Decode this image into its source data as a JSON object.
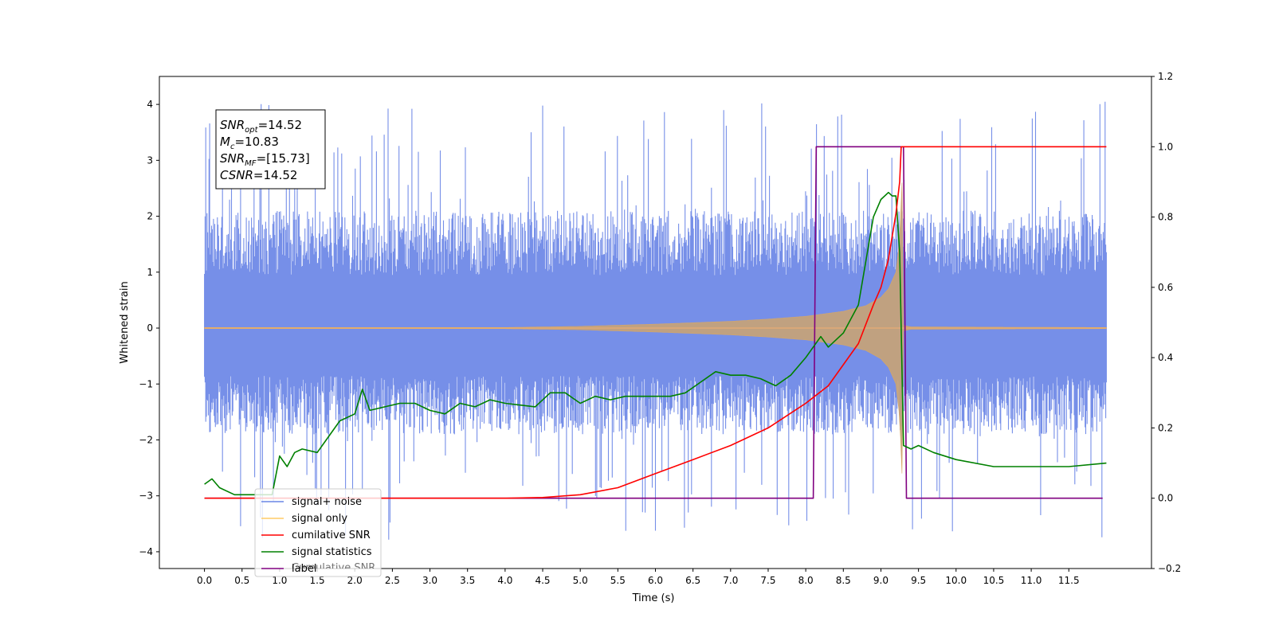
{
  "chart_data": {
    "type": "line",
    "xlabel": "Time (s)",
    "ylabel": "Whitened strain",
    "xlim": [
      -0.6,
      12.6
    ],
    "ylim": [
      -4.3,
      4.5
    ],
    "y2lim": [
      -0.2,
      1.2
    ],
    "x_ticks": [
      "0.0",
      "0.5",
      "1.0",
      "1.5",
      "2.0",
      "2.5",
      "3.0",
      "3.5",
      "4.0",
      "4.5",
      "5.0",
      "5.5",
      "6.0",
      "6.5",
      "7.0",
      "7.5",
      "8.0",
      "8.5",
      "9.0",
      "9.5",
      "10.0",
      "10.5",
      "11.0",
      "11.5"
    ],
    "x_tick_values": [
      0.0,
      0.5,
      1.0,
      1.5,
      2.0,
      2.5,
      3.0,
      3.5,
      4.0,
      4.5,
      5.0,
      5.5,
      6.0,
      6.5,
      7.0,
      7.5,
      8.0,
      8.5,
      9.0,
      9.5,
      10.0,
      10.5,
      11.0,
      11.5
    ],
    "y_ticks": [
      "4",
      "3",
      "2",
      "1",
      "0",
      "−1",
      "−2",
      "−3",
      "−4"
    ],
    "y_tick_values": [
      4,
      3,
      2,
      1,
      0,
      -1,
      -2,
      -3,
      -4
    ],
    "y2_ticks": [
      "1.2",
      "1.0",
      "0.8",
      "0.6",
      "0.4",
      "0.2",
      "0.0",
      "−0.2"
    ],
    "y2_tick_values": [
      1.2,
      1.0,
      0.8,
      0.6,
      0.4,
      0.2,
      0.0,
      -0.2
    ],
    "grid": false,
    "legend_placement": "lower-left",
    "annotation_box": {
      "lines": [
        {
          "sym": "SNR",
          "sub": "opt",
          "value": "=14.52"
        },
        {
          "sym": "M",
          "sub": "c",
          "value": "=10.83"
        },
        {
          "sym": "SNR",
          "sub": "MF",
          "value": "=[15.73]"
        },
        {
          "sym": "CSNR",
          "sub": "",
          "value": "=14.52"
        }
      ]
    },
    "noise_envelope": {
      "x": [
        0.0,
        12.0
      ],
      "typical_upper": 2.1,
      "typical_lower": -1.9,
      "max": 4.1,
      "min": -3.8,
      "axis": "left"
    },
    "signal_envelope": {
      "x": [
        0,
        4,
        5,
        6,
        7,
        7.5,
        8,
        8.5,
        8.8,
        9.0,
        9.1,
        9.2,
        9.25,
        9.28,
        9.3,
        9.4,
        12
      ],
      "amplitude": [
        0.01,
        0.01,
        0.03,
        0.07,
        0.12,
        0.16,
        0.21,
        0.3,
        0.4,
        0.55,
        0.7,
        1.0,
        1.6,
        2.6,
        0.05,
        0.02,
        0.01
      ],
      "axis": "left"
    },
    "series": [
      {
        "name": "cumilative SNR",
        "color": "#ff0000",
        "axis": "right",
        "x": [
          0,
          4.0,
          4.5,
          5.0,
          5.5,
          6.0,
          6.5,
          7.0,
          7.5,
          8.0,
          8.3,
          8.5,
          8.7,
          8.9,
          9.0,
          9.1,
          9.2,
          9.25,
          9.27,
          9.3,
          11.5,
          12.0
        ],
        "y": [
          0,
          0,
          0.002,
          0.01,
          0.03,
          0.07,
          0.11,
          0.15,
          0.2,
          0.27,
          0.32,
          0.38,
          0.44,
          0.55,
          0.6,
          0.68,
          0.81,
          0.9,
          1.0,
          1.0,
          1.0,
          1.0
        ]
      },
      {
        "name": "signal statistics",
        "color": "#008000",
        "axis": "right",
        "x": [
          0,
          0.1,
          0.2,
          0.4,
          0.6,
          0.8,
          0.9,
          1.0,
          1.1,
          1.2,
          1.3,
          1.5,
          1.6,
          1.8,
          2.0,
          2.1,
          2.2,
          2.4,
          2.6,
          2.8,
          3.0,
          3.2,
          3.4,
          3.6,
          3.8,
          4.0,
          4.4,
          4.6,
          4.8,
          5.0,
          5.2,
          5.4,
          5.6,
          5.8,
          6.0,
          6.2,
          6.4,
          6.6,
          6.8,
          7.0,
          7.2,
          7.4,
          7.6,
          7.8,
          8.0,
          8.2,
          8.3,
          8.5,
          8.7,
          8.9,
          9.0,
          9.1,
          9.15,
          9.2,
          9.25,
          9.3,
          9.4,
          9.5,
          9.7,
          10.0,
          10.5,
          11.0,
          11.5,
          12.0
        ],
        "y": [
          0.04,
          0.055,
          0.03,
          0.01,
          0.01,
          0.01,
          0.01,
          0.12,
          0.09,
          0.13,
          0.14,
          0.13,
          0.16,
          0.22,
          0.24,
          0.31,
          0.25,
          0.26,
          0.27,
          0.27,
          0.25,
          0.24,
          0.27,
          0.26,
          0.28,
          0.27,
          0.26,
          0.3,
          0.3,
          0.27,
          0.29,
          0.28,
          0.29,
          0.29,
          0.29,
          0.29,
          0.3,
          0.33,
          0.36,
          0.35,
          0.35,
          0.34,
          0.32,
          0.35,
          0.4,
          0.46,
          0.43,
          0.47,
          0.55,
          0.8,
          0.85,
          0.87,
          0.86,
          0.86,
          0.7,
          0.15,
          0.14,
          0.15,
          0.13,
          0.11,
          0.09,
          0.09,
          0.09,
          0.1
        ]
      },
      {
        "name": "label",
        "color": "#800080",
        "axis": "right",
        "x": [
          0,
          8.1,
          8.14,
          9.3,
          9.34,
          11.95
        ],
        "y": [
          0,
          0,
          1,
          1,
          0,
          0
        ]
      }
    ],
    "legend": [
      {
        "label": "signal+ noise",
        "color": "#6a85e6"
      },
      {
        "label": "signal only",
        "color": "#ffcc66"
      },
      {
        "label": "cumilative SNR",
        "color": "#ff0000"
      },
      {
        "label": "signal statistics",
        "color": "#008000"
      },
      {
        "label": "label",
        "color": "#800080"
      }
    ],
    "legend_overlap_text": "Cumulative SNR"
  }
}
